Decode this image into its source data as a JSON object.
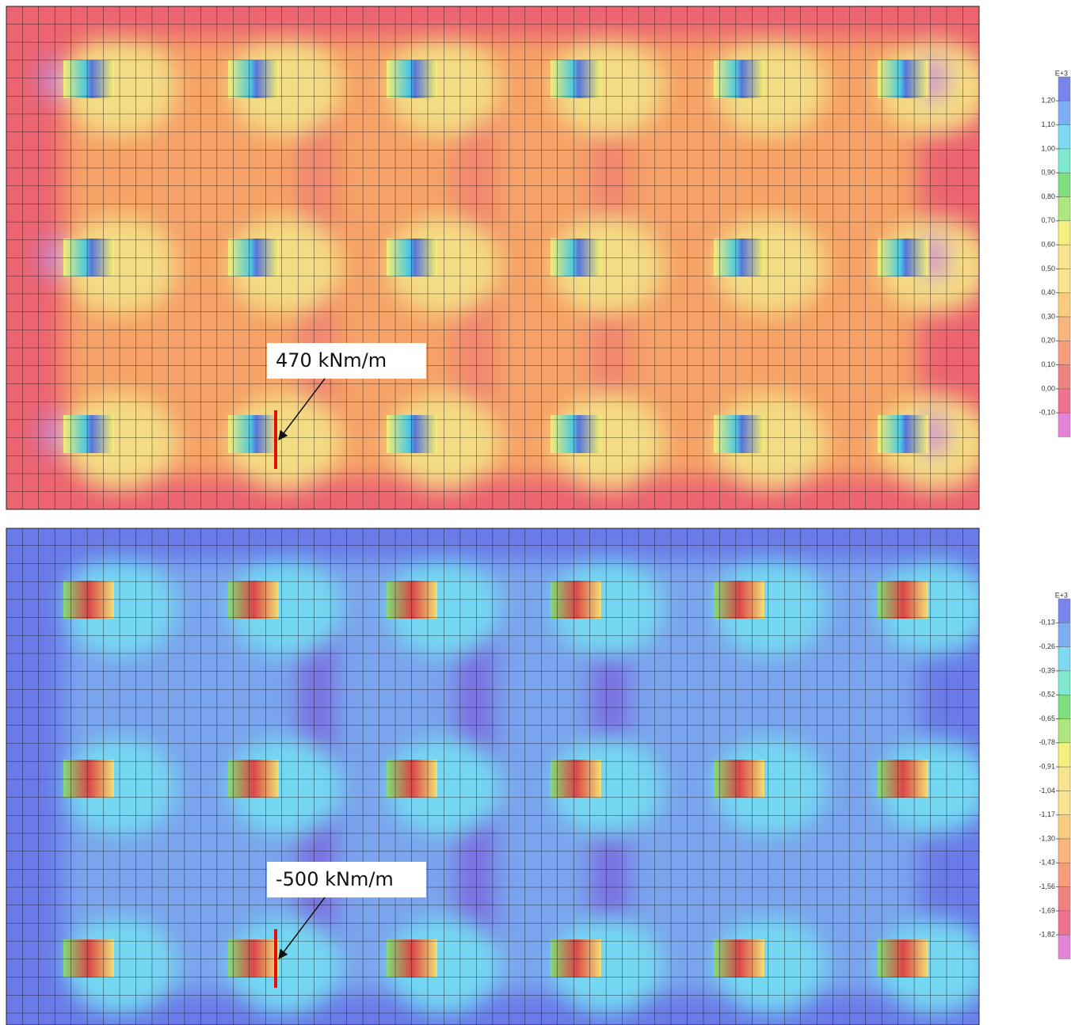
{
  "panels": [
    {
      "annotation": "470 kNm/m",
      "legend": {
        "exponent": "E+3",
        "labels": [
          "1,20",
          "1,10",
          "1,00",
          "0,90",
          "0,80",
          "0,70",
          "0,60",
          "0,50",
          "0,40",
          "0,30",
          "0,20",
          "0,10",
          "0,00",
          "-0,10"
        ]
      }
    },
    {
      "annotation": "-500 kNm/m",
      "legend": {
        "exponent": "E+3",
        "labels": [
          "-0,13",
          "-0,26",
          "-0,39",
          "-0,52",
          "-0,65",
          "-0,78",
          "-0,91",
          "-1,04",
          "-1,17",
          "-1,30",
          "-1,43",
          "-1,56",
          "-1,69",
          "-1,82"
        ]
      }
    }
  ]
}
